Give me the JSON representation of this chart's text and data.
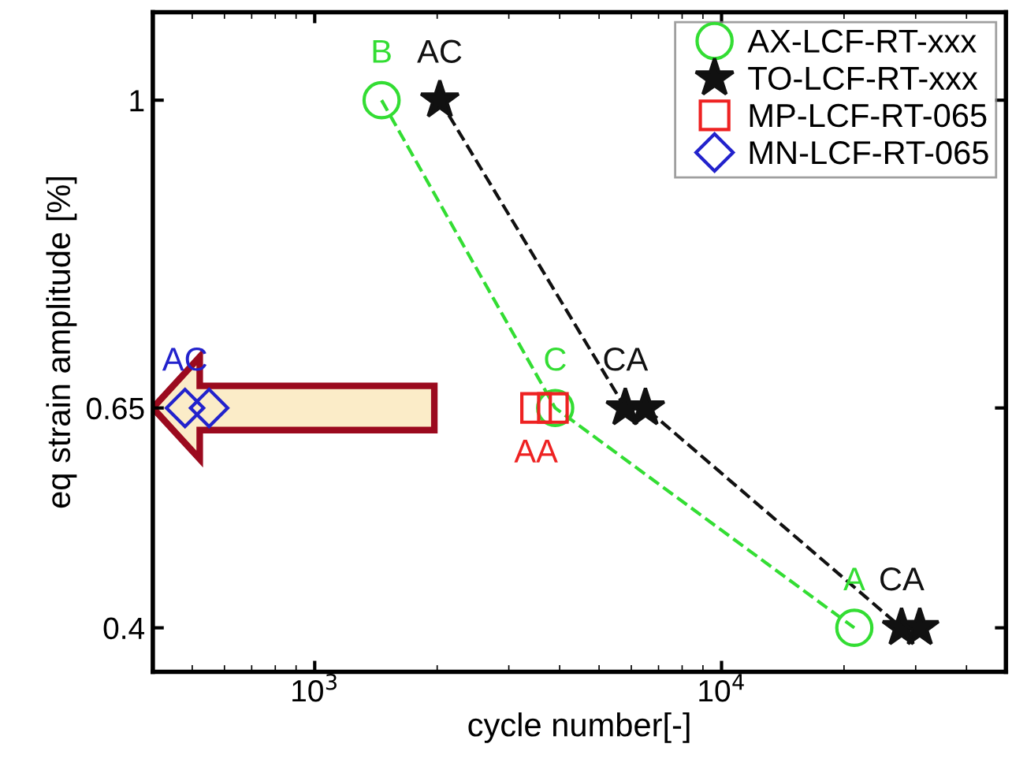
{
  "chart_data": {
    "type": "scatter",
    "xlabel": "cycle number[-]",
    "ylabel": "eq strain amplitude [%]",
    "log": "x",
    "xlim": [
      400,
      50000
    ],
    "xticks": [
      {
        "value": 1000,
        "label": "10$^{3}$"
      },
      {
        "value": 10000,
        "label": "10$^{4}$"
      }
    ],
    "ylim": [
      0.35,
      1.1
    ],
    "yticks": [
      0.4,
      0.65,
      1
    ],
    "grid": false,
    "legend": "top right",
    "series": [
      {
        "name": "AX-LCF-RT-xxx",
        "color": "#33dd33",
        "type": "line",
        "line_style": "dashed",
        "marker": "circle",
        "x": [
          1460,
          3900,
          21200
        ],
        "values": [
          1,
          0.65,
          0.4
        ],
        "value_labels": [
          "B",
          "C",
          "A"
        ]
      },
      {
        "name": "TO-LCF-RT-xxx",
        "color": "#111111",
        "type": "line",
        "line_style": "dashed",
        "marker": "star",
        "x": [
          2030,
          5800,
          6500,
          27700,
          30700
        ],
        "values": [
          1,
          0.65,
          0.65,
          0.4,
          0.4
        ],
        "value_labels": [
          "AC",
          "CA",
          null,
          "CA",
          null
        ]
      },
      {
        "name": "MP-LCF-RT-065",
        "color": "#ee2222",
        "marker": "square",
        "x": [
          3500,
          3850
        ],
        "values": [
          0.65,
          0.65
        ],
        "value_labels": [
          "AA",
          null
        ]
      },
      {
        "name": "MN-LCF-RT-065",
        "color": "#2222cc",
        "marker": "diamond",
        "x": [
          480,
          550
        ],
        "values": [
          0.65,
          0.65
        ],
        "value_labels": [
          "AC",
          null
        ]
      }
    ]
  }
}
